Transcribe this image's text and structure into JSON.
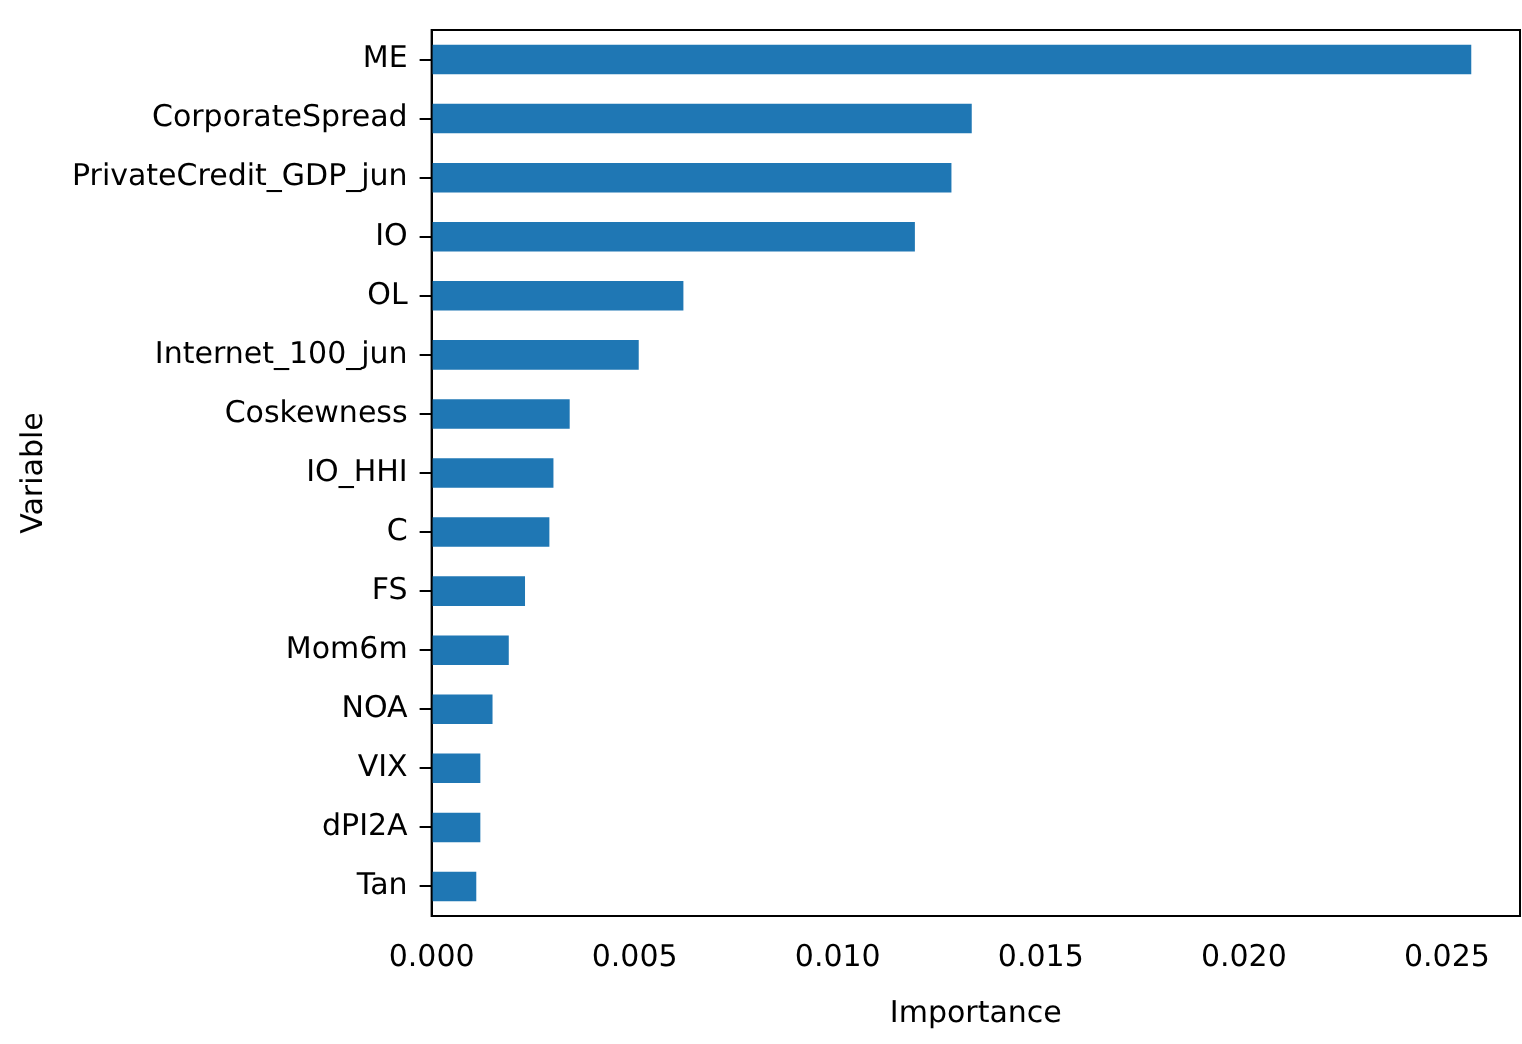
{
  "chart_data": {
    "type": "bar",
    "orientation": "horizontal",
    "xlabel": "Importance",
    "ylabel": "Variable",
    "categories": [
      "ME",
      "CorporateSpread",
      "PrivateCredit_GDP_jun",
      "IO",
      "OL",
      "Internet_100_jun",
      "Coskewness",
      "IO_HHI",
      "C",
      "FS",
      "Mom6m",
      "NOA",
      "VIX",
      "dPI2A",
      "Tan"
    ],
    "values": [
      0.0256,
      0.0133,
      0.0128,
      0.0119,
      0.0062,
      0.0051,
      0.0034,
      0.003,
      0.0029,
      0.0023,
      0.0019,
      0.0015,
      0.0012,
      0.0012,
      0.0011
    ],
    "color": "#1f77b4",
    "xlim": [
      0,
      0.0268
    ],
    "xticks": [
      {
        "value": 0,
        "label": "0.000"
      },
      {
        "value": 0.005,
        "label": "0.005"
      },
      {
        "value": 0.01,
        "label": "0.010"
      },
      {
        "value": 0.015,
        "label": "0.015"
      },
      {
        "value": 0.02,
        "label": "0.020"
      },
      {
        "value": 0.025,
        "label": "0.025"
      }
    ],
    "grid": false,
    "legend": false
  }
}
